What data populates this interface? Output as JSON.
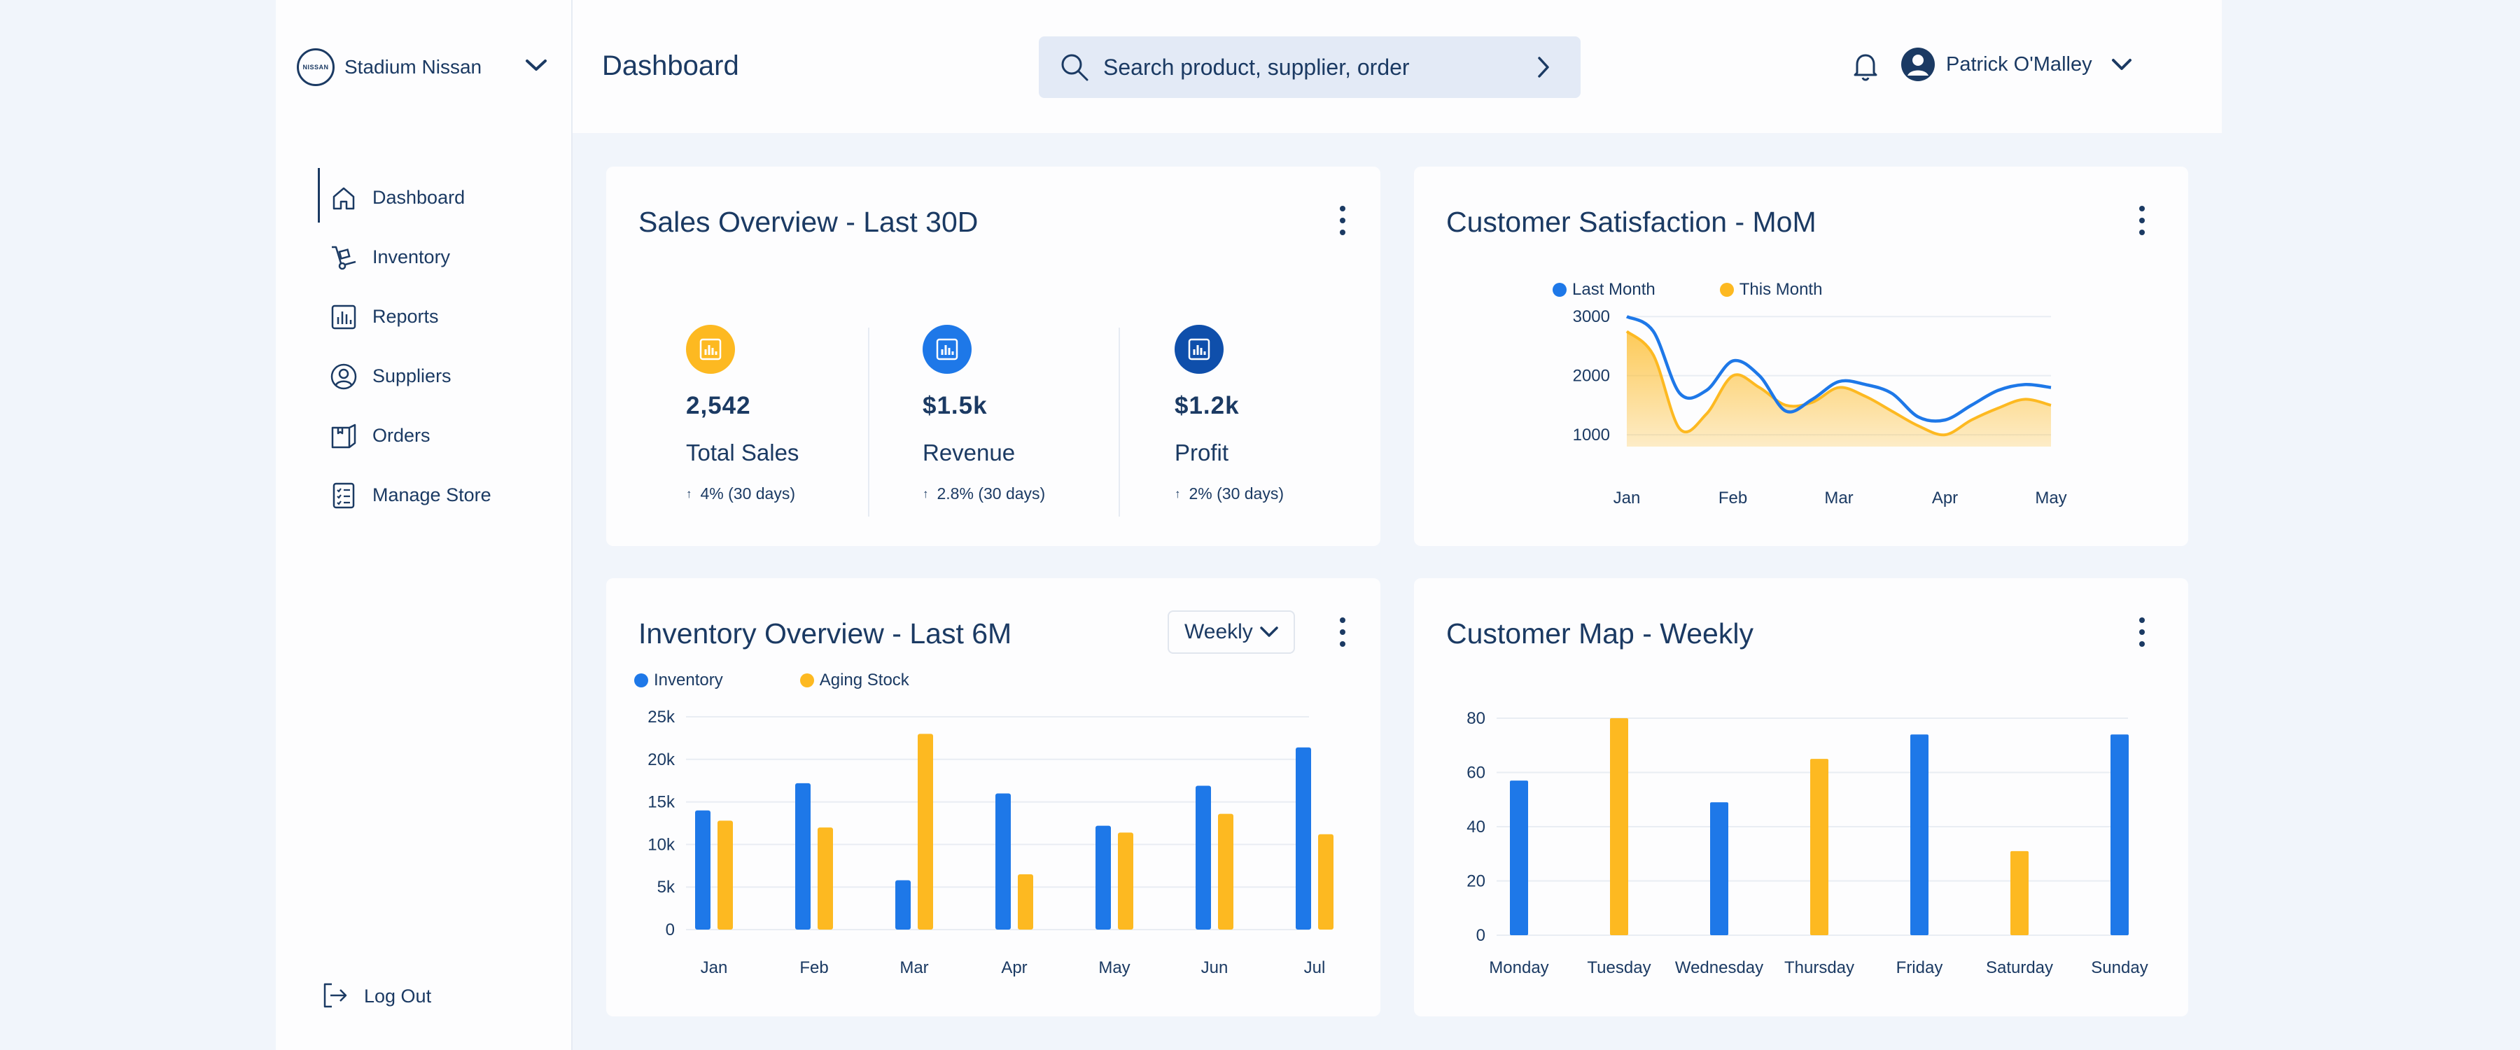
{
  "brand": {
    "logo_text": "NISSAN",
    "name": "Stadium Nissan"
  },
  "header": {
    "title": "Dashboard"
  },
  "search": {
    "placeholder": "Search product, supplier, order"
  },
  "user": {
    "name": "Patrick O'Malley"
  },
  "sidebar": {
    "items": [
      {
        "label": "Dashboard",
        "icon": "home-icon",
        "active": true
      },
      {
        "label": "Inventory",
        "icon": "hand-truck-icon"
      },
      {
        "label": "Reports",
        "icon": "bar-chart-icon"
      },
      {
        "label": "Suppliers",
        "icon": "user-circle-icon"
      },
      {
        "label": "Orders",
        "icon": "package-icon"
      },
      {
        "label": "Manage Store",
        "icon": "checklist-icon"
      }
    ],
    "logout": "Log Out"
  },
  "colors": {
    "primary_blue": "#1e78e8",
    "accent_yellow": "#fdb921",
    "dark_blue": "#0f4fab",
    "text": "#1b3a63"
  },
  "sales": {
    "title": "Sales Overview - Last 30D",
    "stats": [
      {
        "value": "2,542",
        "label": "Total Sales",
        "delta": "4% (30 days)",
        "icon_color": "#fdb921"
      },
      {
        "value": "$1.5k",
        "label": "Revenue",
        "delta": "2.8% (30 days)",
        "icon_color": "#1e78e8"
      },
      {
        "value": "$1.2k",
        "label": "Profit",
        "delta": "2% (30 days)",
        "icon_color": "#0f4fab"
      }
    ]
  },
  "satisfaction": {
    "title": "Customer Satisfaction - MoM"
  },
  "inventory": {
    "title": "Inventory Overview - Last 6M",
    "period": "Weekly"
  },
  "customer_map": {
    "title": "Customer Map - Weekly"
  },
  "chart_data": [
    {
      "type": "area",
      "categories": [
        "Jan",
        "Feb",
        "Mar",
        "Apr",
        "May"
      ],
      "x": [
        0,
        0.25,
        0.5,
        0.75,
        1.0,
        1.25,
        1.5,
        1.75,
        2.0,
        2.25,
        2.5,
        2.75,
        3.0,
        3.25,
        3.5,
        3.75,
        4.0
      ],
      "series": [
        {
          "name": "Last Month",
          "color": "#1e78e8",
          "values": [
            3000,
            2750,
            1700,
            1750,
            2250,
            2000,
            1400,
            1600,
            1900,
            1850,
            1700,
            1300,
            1250,
            1500,
            1750,
            1850,
            1800
          ]
        },
        {
          "name": "This Month",
          "color": "#fdb921",
          "values": [
            2750,
            2350,
            1100,
            1350,
            2000,
            1800,
            1500,
            1550,
            1800,
            1650,
            1400,
            1150,
            1000,
            1250,
            1450,
            1600,
            1500
          ]
        }
      ],
      "yticks": [
        1000,
        2000,
        3000
      ],
      "ylim": [
        800,
        3050
      ],
      "legend": "top"
    },
    {
      "type": "bar",
      "categories": [
        "Jan",
        "Feb",
        "Mar",
        "Apr",
        "May",
        "Jun",
        "Jul"
      ],
      "series": [
        {
          "name": "Inventory",
          "color": "#1e78e8",
          "values": [
            14000,
            17200,
            5800,
            16000,
            12200,
            16900,
            21400
          ]
        },
        {
          "name": "Aging Stock",
          "color": "#fdb921",
          "values": [
            12800,
            12000,
            23000,
            6500,
            11400,
            13600,
            11200
          ]
        }
      ],
      "ytick_labels": [
        "0",
        "5k",
        "10k",
        "15k",
        "20k",
        "25k"
      ],
      "yticks": [
        0,
        5000,
        10000,
        15000,
        20000,
        25000
      ],
      "ylim": [
        0,
        25000
      ],
      "legend": "top-left"
    },
    {
      "type": "bar",
      "categories": [
        "Monday",
        "Tuesday",
        "Wednesday",
        "Thursday",
        "Friday",
        "Saturday",
        "Sunday"
      ],
      "values": [
        57,
        80,
        49,
        65,
        74,
        31,
        74
      ],
      "colors": [
        "#1e78e8",
        "#fdb921",
        "#1e78e8",
        "#fdb921",
        "#1e78e8",
        "#fdb921",
        "#1e78e8"
      ],
      "yticks": [
        0,
        20,
        40,
        60,
        80
      ],
      "ylim": [
        0,
        80
      ]
    }
  ]
}
